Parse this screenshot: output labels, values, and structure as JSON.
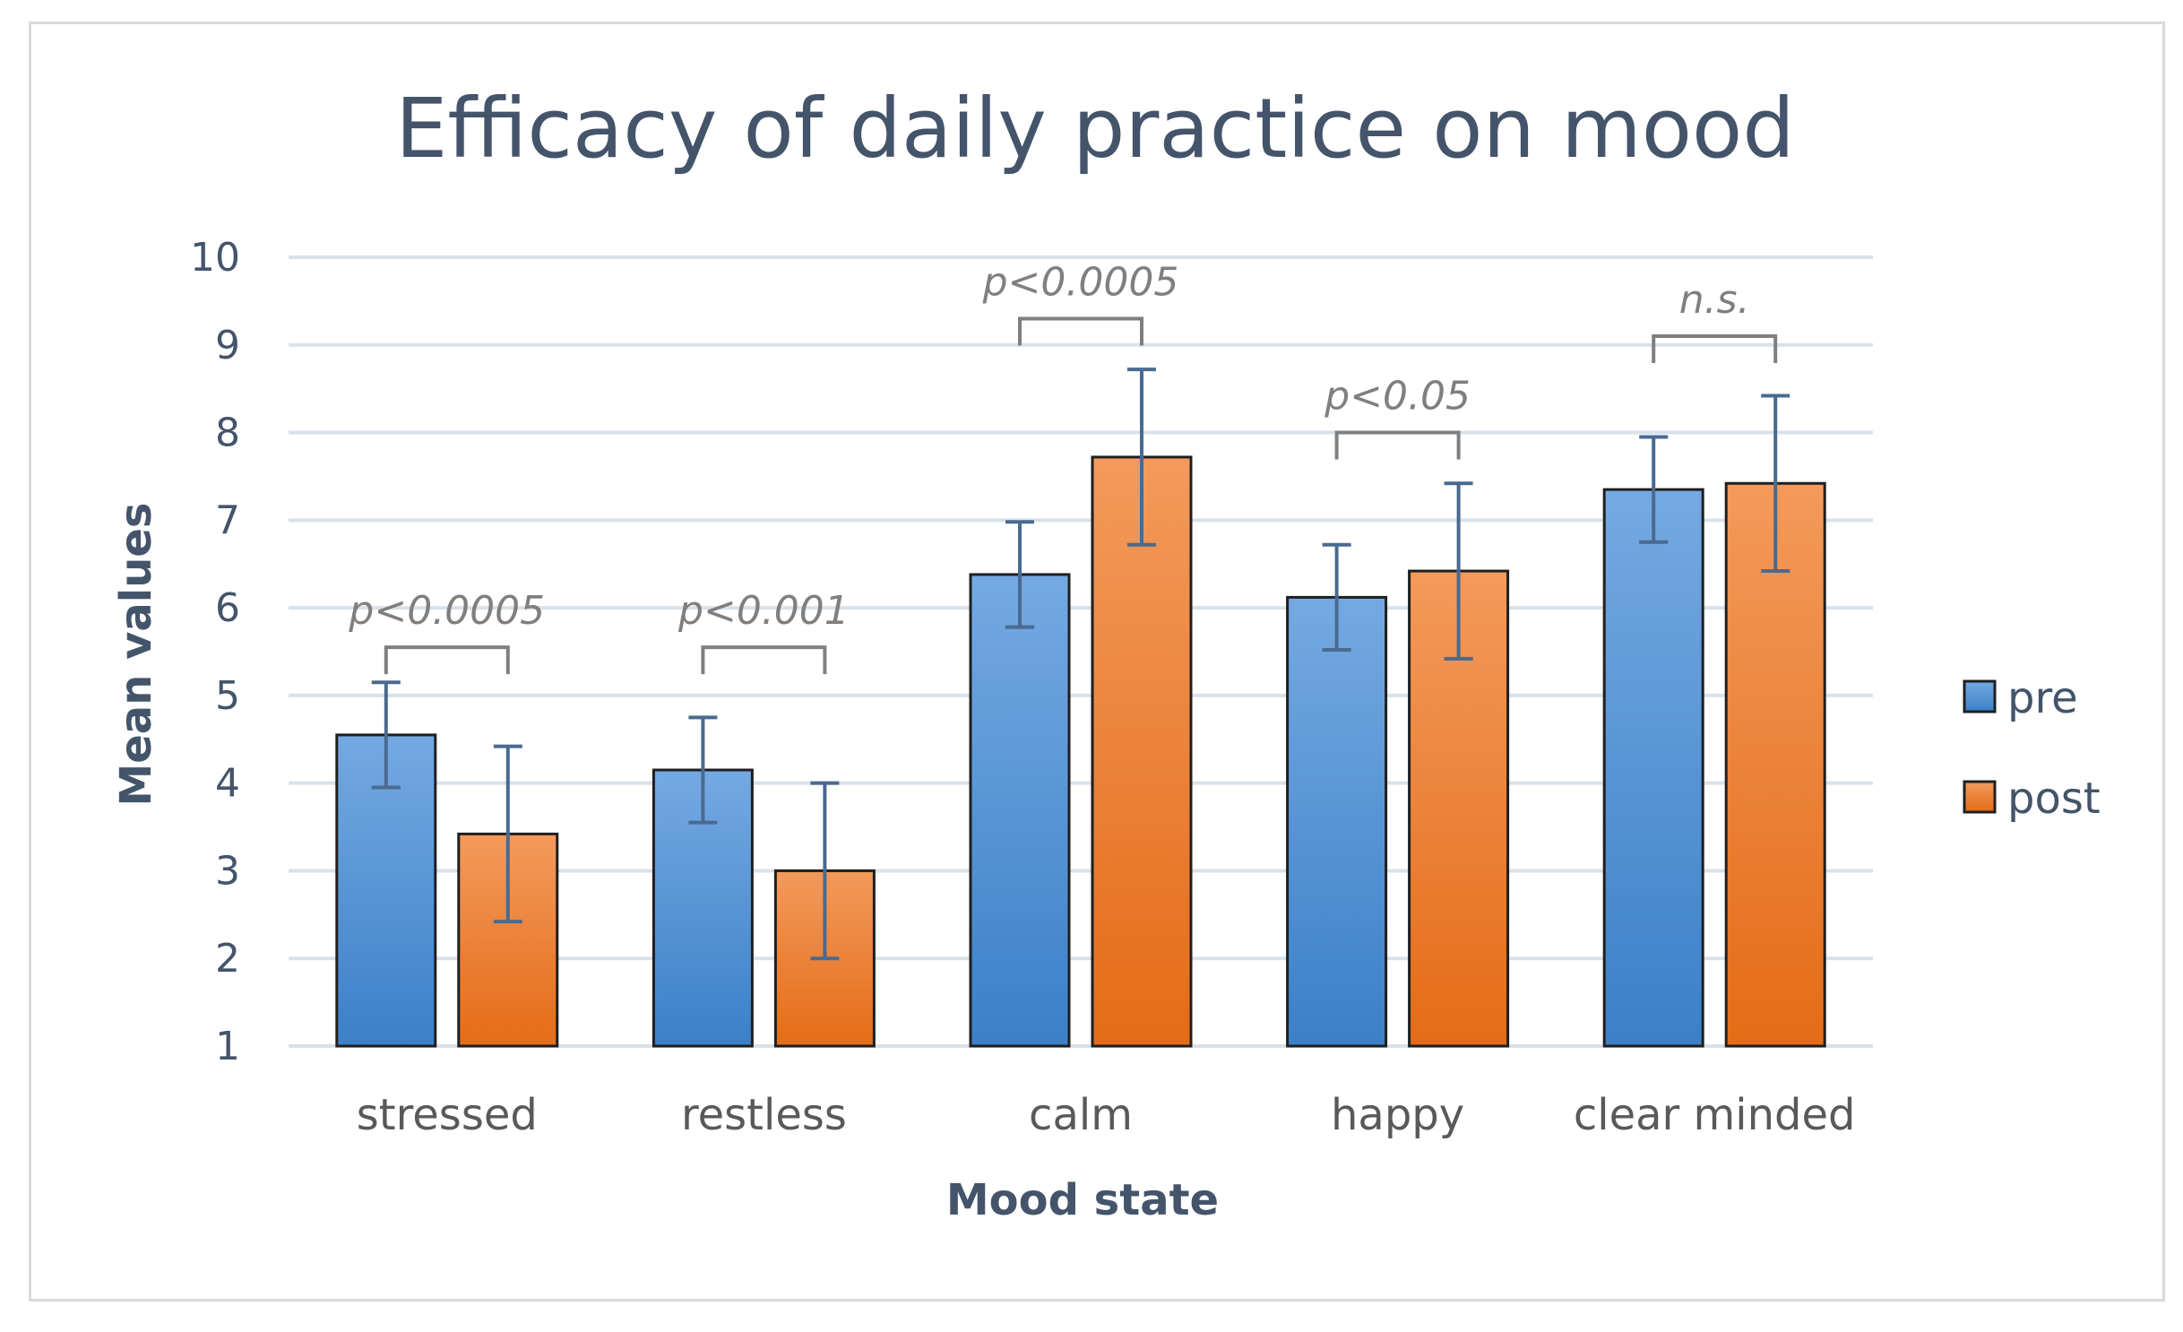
{
  "chart_data": {
    "type": "bar",
    "title": "Efficacy of daily practice on mood",
    "xlabel": "Mood state",
    "ylabel": "Mean values",
    "ylim": [
      1,
      10
    ],
    "yticks": [
      1,
      2,
      3,
      4,
      5,
      6,
      7,
      8,
      9,
      10
    ],
    "categories": [
      "stressed",
      "restless",
      "calm",
      "happy",
      "clear minded"
    ],
    "series": [
      {
        "name": "pre",
        "color_light": "#6fa8e0",
        "color_dark": "#3d85c6",
        "values": [
          4.55,
          4.15,
          6.38,
          6.12,
          7.35
        ],
        "errors": [
          0.6,
          0.6,
          0.6,
          0.6,
          0.6
        ]
      },
      {
        "name": "post",
        "color_light": "#f4a060",
        "color_dark": "#e8711c",
        "values": [
          3.42,
          3.0,
          7.72,
          6.42,
          7.42
        ],
        "errors": [
          1.0,
          1.0,
          1.0,
          1.0,
          1.0
        ]
      }
    ],
    "annotations": [
      {
        "category": "stressed",
        "text": "p<0.0005",
        "level": 5.55
      },
      {
        "category": "restless",
        "text": "p<0.001",
        "level": 5.55
      },
      {
        "category": "calm",
        "text": "p<0.0005",
        "level": 9.3
      },
      {
        "category": "happy",
        "text": "p<0.05",
        "level": 8.0
      },
      {
        "category": "clear minded",
        "text": "n.s.",
        "level": 9.1
      }
    ],
    "legend": "right",
    "grid": true
  }
}
